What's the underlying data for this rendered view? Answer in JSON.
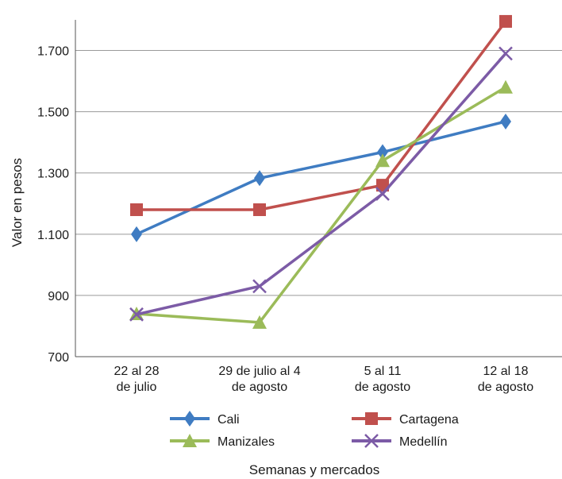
{
  "chart_data": {
    "type": "line",
    "xlabel": "Semanas y mercados",
    "ylabel": "Valor en pesos",
    "ylim": [
      700,
      1800
    ],
    "yticks": [
      700,
      900,
      1100,
      1300,
      1500,
      1700
    ],
    "ytick_labels": [
      "700",
      "900",
      "1.100",
      "1.300",
      "1.500",
      "1.700"
    ],
    "grid": "horizontal",
    "legend_position": "bottom",
    "categories": [
      [
        "22 al 28",
        "de julio"
      ],
      [
        "29 de julio al 4",
        "de agosto"
      ],
      [
        "5 al 11",
        "de agosto"
      ],
      [
        "12 al 18",
        "de agosto"
      ]
    ],
    "series": [
      {
        "name": "Cali",
        "color": "#3f7cc2",
        "marker": "diamond",
        "values": [
          1100,
          1283,
          1368,
          1468
        ]
      },
      {
        "name": "Cartagena",
        "color": "#c0504d",
        "marker": "square",
        "values": [
          1180,
          1180,
          1260,
          1795
        ]
      },
      {
        "name": "Manizales",
        "color": "#9bbb59",
        "marker": "triangle",
        "values": [
          840,
          812,
          1340,
          1580
        ]
      },
      {
        "name": "Medellín",
        "color": "#7c5ba6",
        "marker": "x",
        "values": [
          838,
          930,
          1232,
          1690
        ]
      }
    ]
  }
}
